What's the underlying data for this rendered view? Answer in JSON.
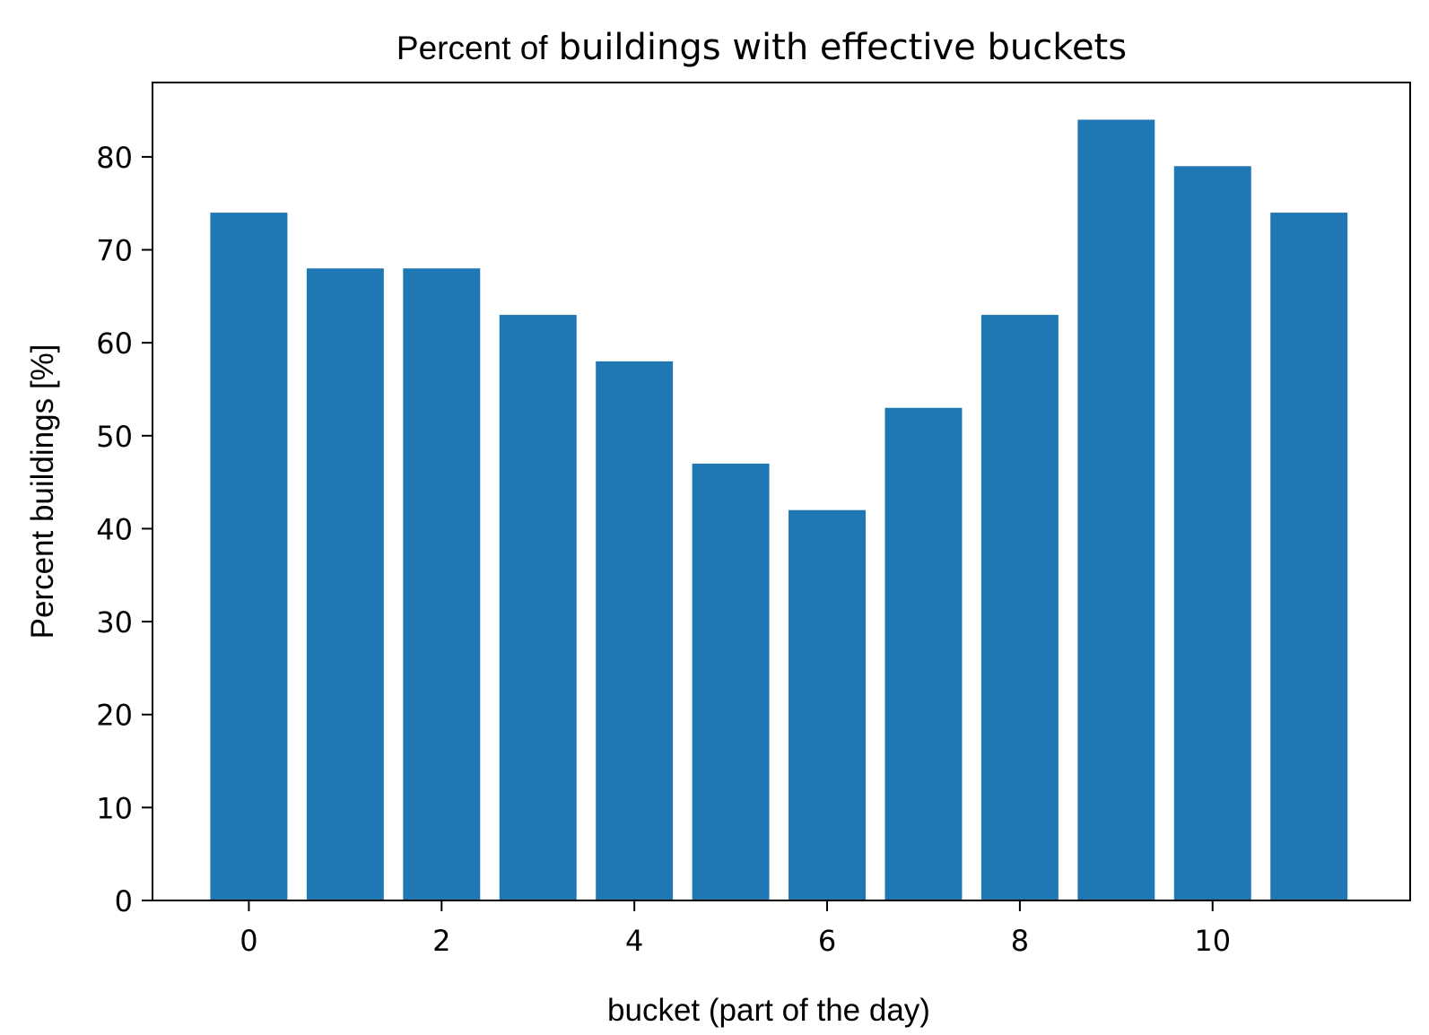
{
  "chart_data": {
    "type": "bar",
    "title_lead": "Percent of",
    "title_rest": "buildings with effective buckets",
    "xlabel": "bucket (part of the day)",
    "ylabel": "Percent buildings [%]",
    "categories": [
      0,
      1,
      2,
      3,
      4,
      5,
      6,
      7,
      8,
      9,
      10,
      11
    ],
    "values": [
      74,
      68,
      68,
      63,
      58,
      47,
      42,
      53,
      63,
      84,
      79,
      74
    ],
    "xlim": [
      -1,
      12.05
    ],
    "ylim": [
      0,
      88
    ],
    "xticks": [
      0,
      2,
      4,
      6,
      8,
      10
    ],
    "yticks": [
      0,
      10,
      20,
      30,
      40,
      50,
      60,
      70,
      80
    ],
    "bar_width": 0.8,
    "bar_color": "#1f77b4",
    "grid": false,
    "legend": false
  }
}
